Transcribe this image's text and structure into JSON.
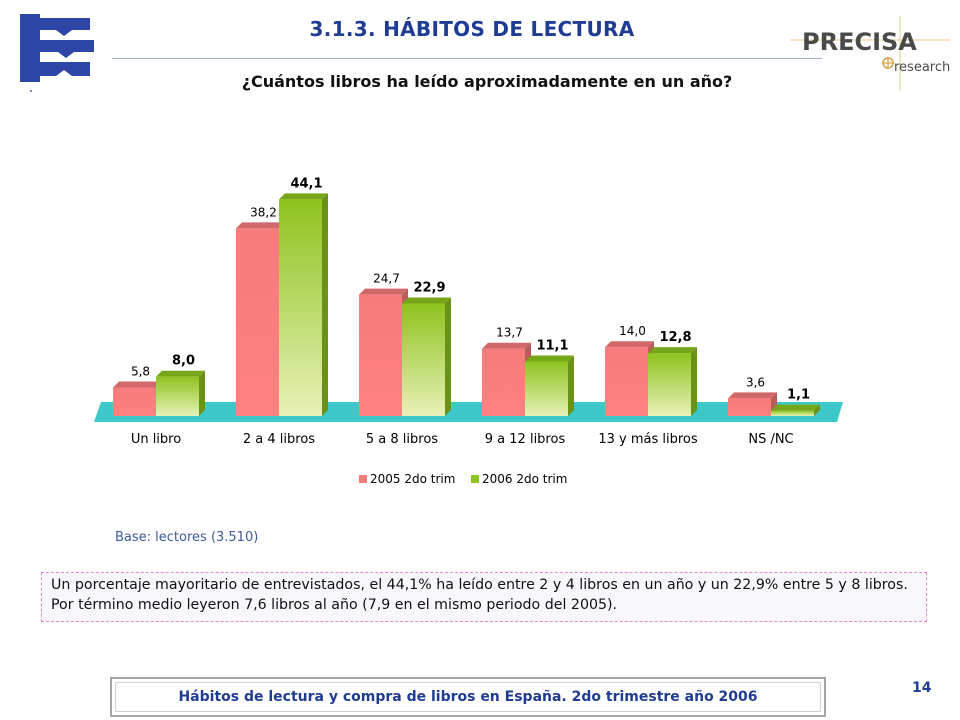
{
  "header": {
    "title": "3.1.3.  HÁBITOS DE LECTURA",
    "question": "¿Cuántos libros ha leído aproximadamente en un año?",
    "brand_name": "PRECISA",
    "brand_sub": "research",
    "colors": {
      "title": "#1f3c93",
      "logo_blue": "#2e47a6",
      "brand_grey": "#4a4a4a",
      "brand_gold": "#d9a441"
    }
  },
  "chart_data": {
    "type": "bar",
    "categories": [
      "Un libro",
      "2 a 4 libros",
      "5 a 8 libros",
      "9 a 12 libros",
      "13 y más libros",
      "NS /NC"
    ],
    "series": [
      {
        "name": "2005 2do trim",
        "values": [
          5.8,
          38.2,
          24.7,
          13.7,
          14.0,
          3.6
        ],
        "labels": [
          "5,8",
          "38,2",
          "24,7",
          "13,7",
          "14,0",
          "3,6"
        ],
        "color": "#f77b7b"
      },
      {
        "name": "2006 2do trim",
        "values": [
          8.0,
          44.1,
          22.9,
          11.1,
          12.8,
          1.1
        ],
        "labels": [
          "8,0",
          "44,1",
          "22,9",
          "11,1",
          "12,8",
          "1,1"
        ],
        "color": "#8dc31e"
      }
    ],
    "ylim": [
      0,
      46
    ],
    "grid": false,
    "legend": "bottom",
    "floor_color": "#3cc8c8"
  },
  "base_note": "Base: lectores (3.510)",
  "summary": "Un porcentaje mayoritario de entrevistados, el 44,1% ha leído entre 2 y 4 libros en un año y un 22,9% entre 5 y 8 libros. Por término medio leyeron 7,6 libros al año (7,9 en el mismo periodo del 2005).",
  "footer": {
    "text": "Hábitos de lectura y compra de libros en España. 2do trimestre año 2006",
    "page_number": "14"
  }
}
